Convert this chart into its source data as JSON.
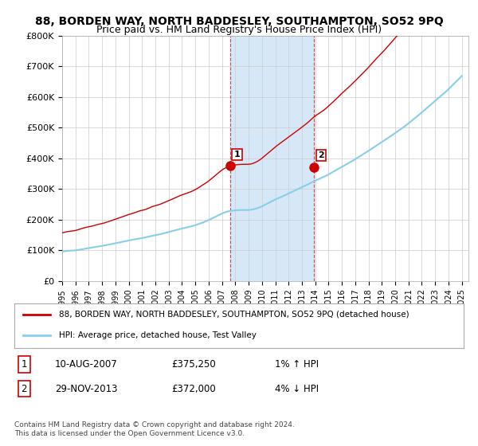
{
  "title": "88, BORDEN WAY, NORTH BADDESLEY, SOUTHAMPTON, SO52 9PQ",
  "subtitle": "Price paid vs. HM Land Registry's House Price Index (HPI)",
  "ylabel_ticks": [
    "£0",
    "£100K",
    "£200K",
    "£300K",
    "£400K",
    "£500K",
    "£600K",
    "£700K",
    "£800K"
  ],
  "ylim": [
    0,
    800000
  ],
  "xlim_start": 1995.0,
  "xlim_end": 2025.5,
  "hpi_color": "#87CEEB",
  "price_color": "#CC0000",
  "shade_color": "#D6E8F7",
  "marker1_x": 2007.6,
  "marker1_y": 375250,
  "marker1_label": "1",
  "marker2_x": 2013.9,
  "marker2_y": 372000,
  "marker2_label": "2",
  "vline1_x": 2007.6,
  "vline2_x": 2013.9,
  "legend_line1": "88, BORDEN WAY, NORTH BADDESLEY, SOUTHAMPTON, SO52 9PQ (detached house)",
  "legend_line2": "HPI: Average price, detached house, Test Valley",
  "table_row1": [
    "1",
    "10-AUG-2007",
    "£375,250",
    "1% ↑ HPI"
  ],
  "table_row2": [
    "2",
    "29-NOV-2013",
    "£372,000",
    "4% ↓ HPI"
  ],
  "footnote": "Contains HM Land Registry data © Crown copyright and database right 2024.\nThis data is licensed under the Open Government Licence v3.0.",
  "background_color": "#ffffff",
  "plot_bg_color": "#ffffff",
  "grid_color": "#cccccc"
}
